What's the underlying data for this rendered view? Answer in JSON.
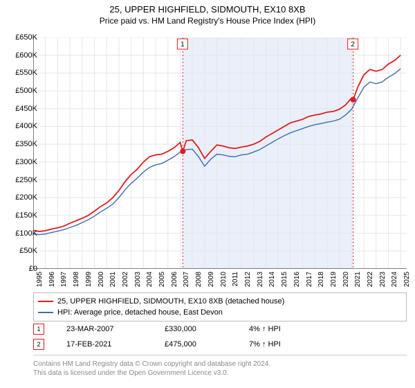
{
  "title": "25, UPPER HIGHFIELD, SIDMOUTH, EX10 8XB",
  "subtitle": "Price paid vs. HM Land Registry's House Price Index (HPI)",
  "title_fontsize": 13,
  "subtitle_fontsize": 12,
  "chart": {
    "type": "line",
    "background_color": "#ffffff",
    "shade_color": "#e9f0f9",
    "grid_color": "#e6e6e6",
    "axis_color": "#000000",
    "ylim": [
      0,
      650000
    ],
    "ytick_step": 50000,
    "ytick_prefix": "£",
    "ytick_suffix": "K",
    "xlim": [
      1995,
      2025.5
    ],
    "xticks": [
      1995,
      1996,
      1997,
      1998,
      1999,
      2000,
      2001,
      2002,
      2003,
      2004,
      2005,
      2006,
      2007,
      2008,
      2009,
      2010,
      2011,
      2012,
      2013,
      2014,
      2015,
      2016,
      2017,
      2018,
      2019,
      2020,
      2021,
      2022,
      2023,
      2024,
      2025
    ],
    "series": [
      {
        "name": "25, UPPER HIGHFIELD, SIDMOUTH, EX10 8XB (detached house)",
        "color": "#e31a1c",
        "line_width": 1.8,
        "data": [
          [
            1995.0,
            108000
          ],
          [
            1995.5,
            105000
          ],
          [
            1996.0,
            107000
          ],
          [
            1996.5,
            112000
          ],
          [
            1997.0,
            115000
          ],
          [
            1997.5,
            120000
          ],
          [
            1998.0,
            128000
          ],
          [
            1998.5,
            135000
          ],
          [
            1999.0,
            142000
          ],
          [
            1999.5,
            150000
          ],
          [
            2000.0,
            162000
          ],
          [
            2000.5,
            175000
          ],
          [
            2001.0,
            185000
          ],
          [
            2001.5,
            200000
          ],
          [
            2002.0,
            220000
          ],
          [
            2002.5,
            245000
          ],
          [
            2003.0,
            265000
          ],
          [
            2003.5,
            280000
          ],
          [
            2004.0,
            300000
          ],
          [
            2004.5,
            315000
          ],
          [
            2005.0,
            320000
          ],
          [
            2005.5,
            322000
          ],
          [
            2006.0,
            330000
          ],
          [
            2006.5,
            340000
          ],
          [
            2007.0,
            355000
          ],
          [
            2007.22,
            330000
          ],
          [
            2007.5,
            360000
          ],
          [
            2008.0,
            362000
          ],
          [
            2008.5,
            340000
          ],
          [
            2009.0,
            310000
          ],
          [
            2009.5,
            330000
          ],
          [
            2010.0,
            348000
          ],
          [
            2010.5,
            345000
          ],
          [
            2011.0,
            340000
          ],
          [
            2011.5,
            338000
          ],
          [
            2012.0,
            342000
          ],
          [
            2012.5,
            345000
          ],
          [
            2013.0,
            350000
          ],
          [
            2013.5,
            358000
          ],
          [
            2014.0,
            370000
          ],
          [
            2014.5,
            380000
          ],
          [
            2015.0,
            390000
          ],
          [
            2015.5,
            400000
          ],
          [
            2016.0,
            410000
          ],
          [
            2016.5,
            415000
          ],
          [
            2017.0,
            420000
          ],
          [
            2017.5,
            428000
          ],
          [
            2018.0,
            432000
          ],
          [
            2018.5,
            435000
          ],
          [
            2019.0,
            440000
          ],
          [
            2019.5,
            442000
          ],
          [
            2020.0,
            448000
          ],
          [
            2020.5,
            460000
          ],
          [
            2021.0,
            480000
          ],
          [
            2021.13,
            475000
          ],
          [
            2021.5,
            510000
          ],
          [
            2022.0,
            545000
          ],
          [
            2022.5,
            560000
          ],
          [
            2023.0,
            555000
          ],
          [
            2023.5,
            560000
          ],
          [
            2024.0,
            575000
          ],
          [
            2024.5,
            585000
          ],
          [
            2025.0,
            600000
          ]
        ]
      },
      {
        "name": "HPI: Average price, detached house, East Devon",
        "color": "#3b6db3",
        "line_width": 1.4,
        "data": [
          [
            1995.0,
            98000
          ],
          [
            1995.5,
            96000
          ],
          [
            1996.0,
            98000
          ],
          [
            1996.5,
            102000
          ],
          [
            1997.0,
            106000
          ],
          [
            1997.5,
            110000
          ],
          [
            1998.0,
            116000
          ],
          [
            1998.5,
            122000
          ],
          [
            1999.0,
            130000
          ],
          [
            1999.5,
            138000
          ],
          [
            2000.0,
            148000
          ],
          [
            2000.5,
            160000
          ],
          [
            2001.0,
            170000
          ],
          [
            2001.5,
            182000
          ],
          [
            2002.0,
            200000
          ],
          [
            2002.5,
            222000
          ],
          [
            2003.0,
            240000
          ],
          [
            2003.5,
            255000
          ],
          [
            2004.0,
            272000
          ],
          [
            2004.5,
            285000
          ],
          [
            2005.0,
            292000
          ],
          [
            2005.5,
            296000
          ],
          [
            2006.0,
            305000
          ],
          [
            2006.5,
            315000
          ],
          [
            2007.0,
            328000
          ],
          [
            2007.5,
            335000
          ],
          [
            2008.0,
            336000
          ],
          [
            2008.5,
            315000
          ],
          [
            2009.0,
            288000
          ],
          [
            2009.5,
            308000
          ],
          [
            2010.0,
            322000
          ],
          [
            2010.5,
            320000
          ],
          [
            2011.0,
            316000
          ],
          [
            2011.5,
            315000
          ],
          [
            2012.0,
            320000
          ],
          [
            2012.5,
            322000
          ],
          [
            2013.0,
            328000
          ],
          [
            2013.5,
            335000
          ],
          [
            2014.0,
            345000
          ],
          [
            2014.5,
            355000
          ],
          [
            2015.0,
            365000
          ],
          [
            2015.5,
            374000
          ],
          [
            2016.0,
            382000
          ],
          [
            2016.5,
            388000
          ],
          [
            2017.0,
            394000
          ],
          [
            2017.5,
            400000
          ],
          [
            2018.0,
            405000
          ],
          [
            2018.5,
            408000
          ],
          [
            2019.0,
            412000
          ],
          [
            2019.5,
            415000
          ],
          [
            2020.0,
            420000
          ],
          [
            2020.5,
            432000
          ],
          [
            2021.0,
            448000
          ],
          [
            2021.5,
            480000
          ],
          [
            2022.0,
            510000
          ],
          [
            2022.5,
            525000
          ],
          [
            2023.0,
            520000
          ],
          [
            2023.5,
            525000
          ],
          [
            2024.0,
            538000
          ],
          [
            2024.5,
            548000
          ],
          [
            2025.0,
            562000
          ]
        ]
      }
    ],
    "shaded_region": {
      "xmin": 2007.22,
      "xmax": 2021.13
    },
    "sale_markers": [
      {
        "badge": "1",
        "x": 2007.22,
        "y": 330000,
        "color": "#e31a1c",
        "date": "23-MAR-2007",
        "price": "£330,000",
        "hpi_delta": "4% ↑ HPI"
      },
      {
        "badge": "2",
        "x": 2021.13,
        "y": 475000,
        "color": "#e31a1c",
        "date": "17-FEB-2021",
        "price": "£475,000",
        "hpi_delta": "7% ↑ HPI"
      }
    ]
  },
  "legend": {
    "border_color": "#bbbbbb"
  },
  "footer_line1": "Contains HM Land Registry data © Crown copyright and database right 2024.",
  "footer_line2": "This data is licensed under the Open Government Licence v3.0."
}
